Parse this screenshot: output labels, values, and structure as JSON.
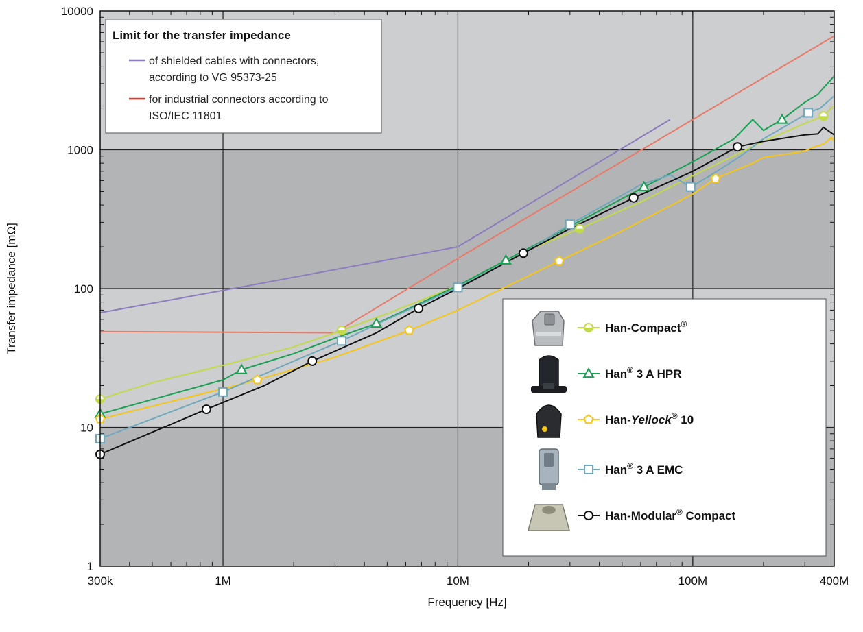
{
  "chart_data": {
    "type": "line",
    "title": "",
    "xlabel": "Frequency [Hz]",
    "ylabel": "Transfer impedance [mΩ]",
    "xscale": "log",
    "yscale": "log",
    "xlim": [
      300000,
      400000000
    ],
    "ylim": [
      1,
      10000
    ],
    "grid": true,
    "x_ticks": [
      {
        "value": 300000,
        "label": "300k"
      },
      {
        "value": 1000000,
        "label": "1M"
      },
      {
        "value": 10000000,
        "label": "10M"
      },
      {
        "value": 100000000,
        "label": "100M"
      },
      {
        "value": 400000000,
        "label": "400M"
      }
    ],
    "y_ticks": [
      {
        "value": 1,
        "label": "1"
      },
      {
        "value": 10,
        "label": "10"
      },
      {
        "value": 100,
        "label": "100"
      },
      {
        "value": 1000,
        "label": "1000"
      },
      {
        "value": 10000,
        "label": "10000"
      }
    ],
    "limits_legend": {
      "title": "Limit for the transfer impedance",
      "placement": "top-left",
      "entries": [
        {
          "lines": [
            "of shielded cables with connectors,",
            "according to VG 95373-25"
          ],
          "color": "#8c7bbd"
        },
        {
          "lines": [
            "for industrial connectors according to",
            "ISO/IEC 11801"
          ],
          "color": "#e8332a"
        }
      ]
    },
    "limit_series": [
      {
        "color": "#8c7bbd",
        "x": [
          300000,
          1000000,
          10000000,
          80000000
        ],
        "y": [
          67,
          97,
          200,
          1650
        ]
      },
      {
        "color": "#e87a6a",
        "x": [
          300000,
          3000000,
          10000000,
          400000000
        ],
        "y": [
          49,
          48,
          165,
          6600
        ]
      }
    ],
    "products_legend": {
      "placement": "bottom-right",
      "entries": [
        {
          "label_parts": [
            {
              "t": "Han-Compact"
            },
            {
              "t": "®",
              "sup": true
            }
          ],
          "color": "#c2d94a",
          "marker": "half-circle",
          "icon": "han-compact-hood"
        },
        {
          "label_parts": [
            {
              "t": "Han"
            },
            {
              "t": "®",
              "sup": true
            },
            {
              "t": " 3 A HPR"
            }
          ],
          "color": "#1aa055",
          "marker": "triangle",
          "icon": "han-3a-hpr-hood"
        },
        {
          "label_parts": [
            {
              "t": "Han-"
            },
            {
              "t": "Yellock",
              "italic": true
            },
            {
              "t": "®",
              "sup": true
            },
            {
              "t": " 10"
            }
          ],
          "color": "#f5c518",
          "marker": "pentagon",
          "icon": "han-yellock-hood"
        },
        {
          "label_parts": [
            {
              "t": "Han"
            },
            {
              "t": "®",
              "sup": true
            },
            {
              "t": " 3 A EMC"
            }
          ],
          "color": "#6fa8bd",
          "marker": "square",
          "icon": "han-3a-emc-hood"
        },
        {
          "label_parts": [
            {
              "t": "Han-Modular"
            },
            {
              "t": "®",
              "sup": true
            },
            {
              "t": " Compact"
            }
          ],
          "color": "#111111",
          "marker": "circle",
          "icon": "han-modular-compact-housing"
        }
      ]
    },
    "series": [
      {
        "color": "#c2d94a",
        "marker": "half-circle",
        "x": [
          300000,
          500000,
          1000000,
          2000000,
          3200000,
          5000000,
          10000000,
          20000000,
          33000000,
          60000000,
          100000000,
          200000000,
          300000000,
          360000000,
          400000000
        ],
        "y": [
          16,
          21,
          28,
          38,
          50,
          66,
          105,
          190,
          270,
          420,
          650,
          1150,
          1550,
          1750,
          2100
        ],
        "marker_x": [
          300000,
          3200000,
          33000000,
          360000000
        ],
        "marker_y": [
          16,
          50,
          270,
          1750
        ]
      },
      {
        "color": "#1aa055",
        "marker": "triangle",
        "x": [
          300000,
          1000000,
          1200000,
          2000000,
          3000000,
          4500000,
          10000000,
          16000000,
          30000000,
          62000000,
          100000000,
          150000000,
          180000000,
          200000000,
          240000000,
          300000000,
          340000000,
          400000000
        ],
        "y": [
          12.5,
          22,
          26,
          34,
          44,
          56,
          105,
          160,
          280,
          540,
          820,
          1200,
          1650,
          1380,
          1650,
          2200,
          2500,
          3400
        ],
        "marker_x": [
          300000,
          1200000,
          4500000,
          16000000,
          62000000,
          240000000
        ],
        "marker_y": [
          12.5,
          26,
          56,
          160,
          540,
          1650
        ]
      },
      {
        "color": "#f5c518",
        "marker": "pentagon",
        "x": [
          300000,
          1000000,
          1400000,
          3000000,
          6200000,
          10000000,
          27000000,
          50000000,
          100000000,
          125000000,
          180000000,
          200000000,
          240000000,
          300000000,
          330000000,
          360000000,
          390000000,
          400000000
        ],
        "y": [
          11.5,
          19,
          22,
          32,
          50,
          70,
          158,
          260,
          480,
          620,
          800,
          880,
          920,
          980,
          1050,
          1100,
          1230,
          1150
        ],
        "marker_x": [
          300000,
          1400000,
          6200000,
          27000000,
          125000000
        ],
        "marker_y": [
          11.5,
          22,
          50,
          158,
          620
        ]
      },
      {
        "color": "#6fa8bd",
        "marker": "square",
        "x": [
          300000,
          1000000,
          2000000,
          3200000,
          5000000,
          10000000,
          20000000,
          30000000,
          60000000,
          80000000,
          98000000,
          120000000,
          160000000,
          200000000,
          260000000,
          310000000,
          350000000,
          400000000
        ],
        "y": [
          8.3,
          18,
          30,
          42,
          60,
          102,
          190,
          290,
          560,
          660,
          540,
          660,
          900,
          1200,
          1550,
          1850,
          2000,
          2450
        ],
        "marker_x": [
          300000,
          1000000,
          3200000,
          10000000,
          30000000,
          98000000,
          310000000
        ],
        "marker_y": [
          8.3,
          18,
          42,
          102,
          290,
          540,
          1850
        ]
      },
      {
        "color": "#111111",
        "marker": "circle",
        "x": [
          300000,
          850000,
          1500000,
          2400000,
          4500000,
          6800000,
          10000000,
          19000000,
          30000000,
          56000000,
          100000000,
          155000000,
          200000000,
          300000000,
          340000000,
          360000000,
          400000000
        ],
        "y": [
          6.4,
          13.5,
          20,
          30,
          48,
          72,
          100,
          180,
          270,
          450,
          700,
          1050,
          1150,
          1280,
          1300,
          1450,
          1280
        ],
        "marker_x": [
          300000,
          850000,
          2400000,
          6800000,
          19000000,
          56000000,
          155000000
        ],
        "marker_y": [
          6.4,
          13.5,
          30,
          72,
          180,
          450,
          1050
        ]
      }
    ]
  }
}
